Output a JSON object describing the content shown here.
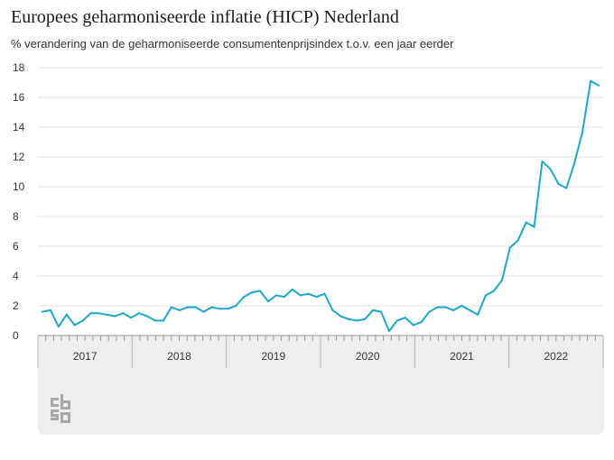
{
  "chart_data": {
    "type": "line",
    "title": "Europees geharmoniseerde inflatie (HICP) Nederland",
    "subtitle": "% verandering van de geharmoniseerde consumentenprijsindex t.o.v. een jaar eerder",
    "xlabel": "",
    "ylabel": "",
    "ylim": [
      0,
      18
    ],
    "yticks": [
      "0",
      "2",
      "4",
      "6",
      "8",
      "10",
      "12",
      "14",
      "16",
      "18"
    ],
    "years": [
      "2017",
      "2018",
      "2019",
      "2020",
      "2021",
      "2022"
    ],
    "grid": true,
    "legend": "none",
    "series": [
      {
        "color": "#1fa7c9",
        "values": [
          1.6,
          1.7,
          0.6,
          1.4,
          0.7,
          1.0,
          1.5,
          1.5,
          1.4,
          1.3,
          1.5,
          1.2,
          1.5,
          1.3,
          1.0,
          1.0,
          1.9,
          1.7,
          1.9,
          1.9,
          1.6,
          1.9,
          1.8,
          1.8,
          2.0,
          2.6,
          2.9,
          3.0,
          2.3,
          2.7,
          2.6,
          3.1,
          2.7,
          2.8,
          2.6,
          2.8,
          1.7,
          1.3,
          1.1,
          1.0,
          1.1,
          1.7,
          1.6,
          0.3,
          1.0,
          1.2,
          0.7,
          0.9,
          1.6,
          1.9,
          1.9,
          1.7,
          2.0,
          1.7,
          1.4,
          2.7,
          3.0,
          3.7,
          5.9,
          6.4,
          7.6,
          7.3,
          11.7,
          11.2,
          10.2,
          9.9,
          11.6,
          13.7,
          17.1,
          16.8
        ]
      }
    ]
  },
  "colors": {
    "line": "#1fa7c9",
    "grid": "#e0e0e0",
    "axis": "#888888",
    "panel": "#eeeeee",
    "logo": "#a7a7a7"
  },
  "footer": {
    "logo_icon": "cbs-logo-icon"
  }
}
